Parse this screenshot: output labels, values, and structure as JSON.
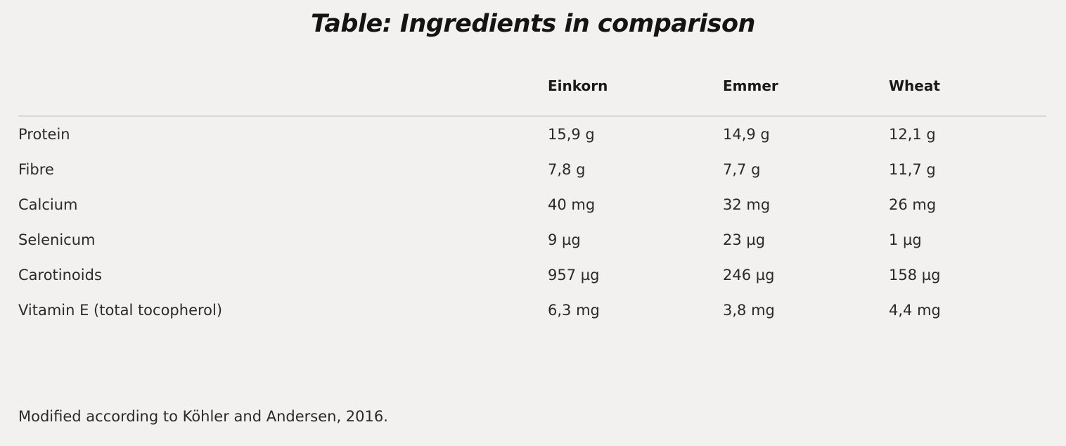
{
  "title": "Table: Ingredients in comparison",
  "table": {
    "headers": [
      "",
      "Einkorn",
      "Emmer",
      "Wheat"
    ],
    "rows": [
      [
        "Protein",
        "15,9 g",
        "14,9 g",
        "12,1 g"
      ],
      [
        "Fibre",
        "7,8 g",
        "7,7 g",
        "11,7 g"
      ],
      [
        "Calcium",
        "40 mg",
        "32 mg",
        "26 mg"
      ],
      [
        "Selenicum",
        "9 µg",
        "23 µg",
        "1 µg"
      ],
      [
        "Carotinoids",
        "957 µg",
        "246 µg",
        "158 µg"
      ],
      [
        "Vitamin E (total tocopherol)",
        "6,3 mg",
        "3,8 mg",
        "4,4 mg"
      ]
    ]
  },
  "footnote": "Modified according to Köhler and Andersen, 2016."
}
